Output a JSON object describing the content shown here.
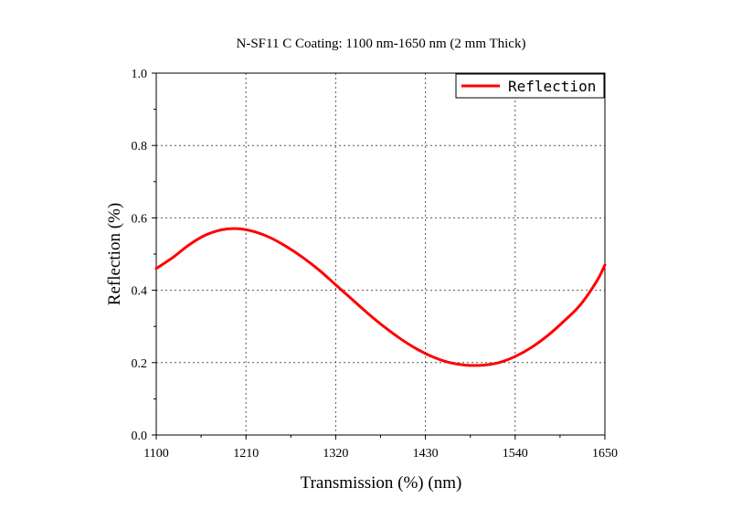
{
  "chart_data": {
    "type": "line",
    "title": "N-SF11 C Coating: 1100 nm-1650 nm (2 mm Thick)",
    "xlabel": "Transmission (%) (nm)",
    "ylabel": "Reflection (%)",
    "xlim": [
      1100,
      1650
    ],
    "ylim": [
      0.0,
      1.0
    ],
    "xticks": [
      1100,
      1210,
      1320,
      1430,
      1540,
      1650
    ],
    "xtick_labels": [
      "1100",
      "1210",
      "1320",
      "1430",
      "1540",
      "1650"
    ],
    "yticks": [
      0.0,
      0.2,
      0.4,
      0.6,
      0.8,
      1.0
    ],
    "ytick_labels": [
      "0.0",
      "0.2",
      "0.4",
      "0.6",
      "0.8",
      "1.0"
    ],
    "grid": true,
    "legend_position": "top-right",
    "series": [
      {
        "name": "Reflection",
        "color": "#ff0000",
        "x": [
          1100,
          1120,
          1140,
          1160,
          1180,
          1200,
          1220,
          1240,
          1260,
          1280,
          1300,
          1320,
          1340,
          1360,
          1380,
          1400,
          1420,
          1440,
          1460,
          1480,
          1500,
          1520,
          1540,
          1560,
          1580,
          1600,
          1620,
          1640,
          1650
        ],
        "y": [
          0.46,
          0.49,
          0.525,
          0.552,
          0.567,
          0.57,
          0.562,
          0.545,
          0.52,
          0.49,
          0.455,
          0.415,
          0.375,
          0.335,
          0.298,
          0.265,
          0.237,
          0.215,
          0.2,
          0.193,
          0.193,
          0.2,
          0.217,
          0.242,
          0.275,
          0.315,
          0.36,
          0.425,
          0.47
        ]
      }
    ]
  }
}
